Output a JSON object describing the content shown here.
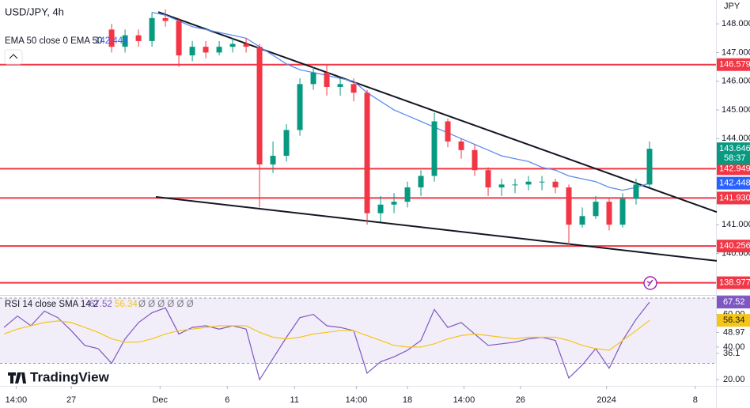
{
  "chart_data": [
    {
      "type": "candlestick",
      "title": "USD/JPY, 4h",
      "unit": "JPY",
      "xlim": [
        -0.3,
        53
      ],
      "ylim": [
        138.58,
        148.83
      ],
      "xticks": [
        {
          "value": 0.9,
          "label": "14:00"
        },
        {
          "value": 5,
          "label": "27"
        },
        {
          "value": 11.6,
          "label": "Dec"
        },
        {
          "value": 16.6,
          "label": "6"
        },
        {
          "value": 21.6,
          "label": "11"
        },
        {
          "value": 26.2,
          "label": "14:00"
        },
        {
          "value": 30,
          "label": "18"
        },
        {
          "value": 34.2,
          "label": "14:00"
        },
        {
          "value": 38.4,
          "label": "26"
        },
        {
          "value": 44.8,
          "label": "2024"
        },
        {
          "value": 51.4,
          "label": "8"
        }
      ],
      "yticks": [
        {
          "value": 148,
          "label": "148.000"
        },
        {
          "value": 147,
          "label": "147.000"
        },
        {
          "value": 146,
          "label": "146.000"
        },
        {
          "value": 145,
          "label": "145.000"
        },
        {
          "value": 144,
          "label": "144.000"
        },
        {
          "value": 141,
          "label": "141.000"
        },
        {
          "value": 140,
          "label": "140.000"
        }
      ],
      "up_color": "#089981",
      "down_color": "#f23645",
      "open": [
        null,
        null,
        null,
        null,
        null,
        null,
        null,
        null,
        147.8,
        147.2,
        147.6,
        147.4,
        148.2,
        148.1,
        146.9,
        147.2,
        147.0,
        147.2,
        147.3,
        147.2,
        143.1,
        143.4,
        144.3,
        145.9,
        146.3,
        145.8,
        145.9,
        145.6,
        141.4,
        141.7,
        141.8,
        142.3,
        142.7,
        144.6,
        143.9,
        143.6,
        142.9,
        142.3,
        142.4,
        142.4,
        142.5,
        142.5,
        142.3,
        141.0,
        141.3,
        141.8,
        141.0,
        141.9,
        142.4
      ],
      "high": [
        null,
        null,
        null,
        null,
        null,
        null,
        null,
        null,
        148.0,
        147.8,
        147.8,
        148.4,
        148.5,
        148.2,
        147.4,
        147.4,
        147.4,
        147.5,
        147.5,
        147.3,
        143.9,
        144.5,
        146.1,
        146.5,
        146.6,
        146.1,
        146.1,
        145.7,
        142.0,
        142.1,
        142.5,
        142.9,
        144.9,
        144.7,
        144.0,
        143.8,
        143.0,
        142.6,
        142.6,
        142.7,
        142.7,
        142.6,
        142.4,
        141.6,
        142.0,
        141.9,
        142.1,
        142.6,
        143.9
      ],
      "low": [
        null,
        null,
        null,
        null,
        null,
        null,
        null,
        null,
        147.0,
        147.0,
        147.2,
        147.2,
        147.9,
        146.5,
        146.7,
        146.8,
        146.9,
        147.0,
        147.0,
        141.6,
        142.8,
        143.2,
        144.1,
        145.7,
        145.5,
        145.5,
        145.3,
        141.0,
        141.1,
        141.4,
        141.6,
        142.0,
        142.5,
        143.7,
        143.3,
        142.7,
        142.0,
        142.0,
        142.1,
        142.2,
        142.2,
        142.1,
        140.3,
        140.9,
        141.2,
        140.8,
        140.9,
        141.7,
        142.3
      ],
      "close": [
        null,
        null,
        null,
        null,
        null,
        null,
        null,
        null,
        147.2,
        147.6,
        147.4,
        148.2,
        148.1,
        146.9,
        147.2,
        147.0,
        147.2,
        147.3,
        147.2,
        143.1,
        143.4,
        144.3,
        145.9,
        146.3,
        145.8,
        145.9,
        145.6,
        141.4,
        141.7,
        141.8,
        142.3,
        142.7,
        144.6,
        143.9,
        143.6,
        142.9,
        142.3,
        142.4,
        142.4,
        142.5,
        142.5,
        142.3,
        141.0,
        141.3,
        141.8,
        141.0,
        141.9,
        142.4,
        143.646
      ],
      "countdown": "58:37",
      "series": [
        {
          "name": "EMA 50 close 0 EMA 50",
          "color": "#5b8def",
          "values": [
            null,
            null,
            null,
            null,
            null,
            null,
            null,
            null,
            null,
            null,
            null,
            148.4,
            148.3,
            148.1,
            147.9,
            147.8,
            147.7,
            147.6,
            147.5,
            147.2,
            146.9,
            146.6,
            146.4,
            146.3,
            146.2,
            146.1,
            146.0,
            145.6,
            145.3,
            145.0,
            144.8,
            144.6,
            144.4,
            144.2,
            144.0,
            143.8,
            143.6,
            143.4,
            143.3,
            143.2,
            143.0,
            142.9,
            142.7,
            142.6,
            142.5,
            142.3,
            142.2,
            142.3,
            142.448
          ]
        }
      ],
      "levels": [
        146.579,
        142.949,
        {
          "value": 141.93,
          "label": "141.930"
        },
        140.256,
        138.977
      ],
      "level_color": "#f23645",
      "trendlines": [
        {
          "points": [
            [
              11.47,
              148.41
            ],
            [
              53,
              141.44
            ]
          ]
        },
        {
          "points": [
            [
              11.29,
              141.97
            ],
            [
              53,
              139.74
            ]
          ]
        }
      ]
    },
    {
      "type": "line",
      "title": "RSI 14 close SMA 14 2",
      "placeholders": "Ø Ø Ø Ø Ø Ø",
      "ylim": [
        16.2,
        70.95
      ],
      "yticks": [
        {
          "value": 60,
          "label": "60.00"
        },
        48.97,
        {
          "value": 40,
          "label": "40.00"
        },
        36.1,
        {
          "value": 20,
          "label": "20.00"
        }
      ],
      "band": [
        30,
        70
      ],
      "series": [
        {
          "name": "RSI",
          "color": "#7e57c2",
          "values": [
            52,
            59,
            53,
            62,
            58,
            50,
            41,
            39,
            30,
            45,
            55,
            61,
            64,
            48,
            52,
            53,
            51,
            53,
            51,
            20,
            33,
            46,
            58,
            60,
            53,
            52,
            50,
            24,
            31,
            34,
            38,
            44,
            63,
            52,
            55,
            48,
            41,
            42,
            43,
            45,
            46,
            44,
            21,
            29,
            39,
            27,
            44,
            57,
            67.52
          ]
        },
        {
          "name": "SMA",
          "color": "#f5c518",
          "values": [
            48,
            51,
            53,
            55,
            56,
            55,
            52,
            49,
            45,
            43,
            43,
            45,
            48,
            50,
            51,
            52,
            53,
            53,
            53,
            49,
            46,
            45,
            46,
            48,
            49,
            50,
            50,
            47,
            44,
            41,
            40,
            40,
            42,
            45,
            47,
            48,
            47,
            46,
            45,
            46,
            46,
            46,
            44,
            41,
            39,
            38,
            44,
            50,
            56.34
          ]
        }
      ]
    }
  ],
  "branding": "TradingView"
}
